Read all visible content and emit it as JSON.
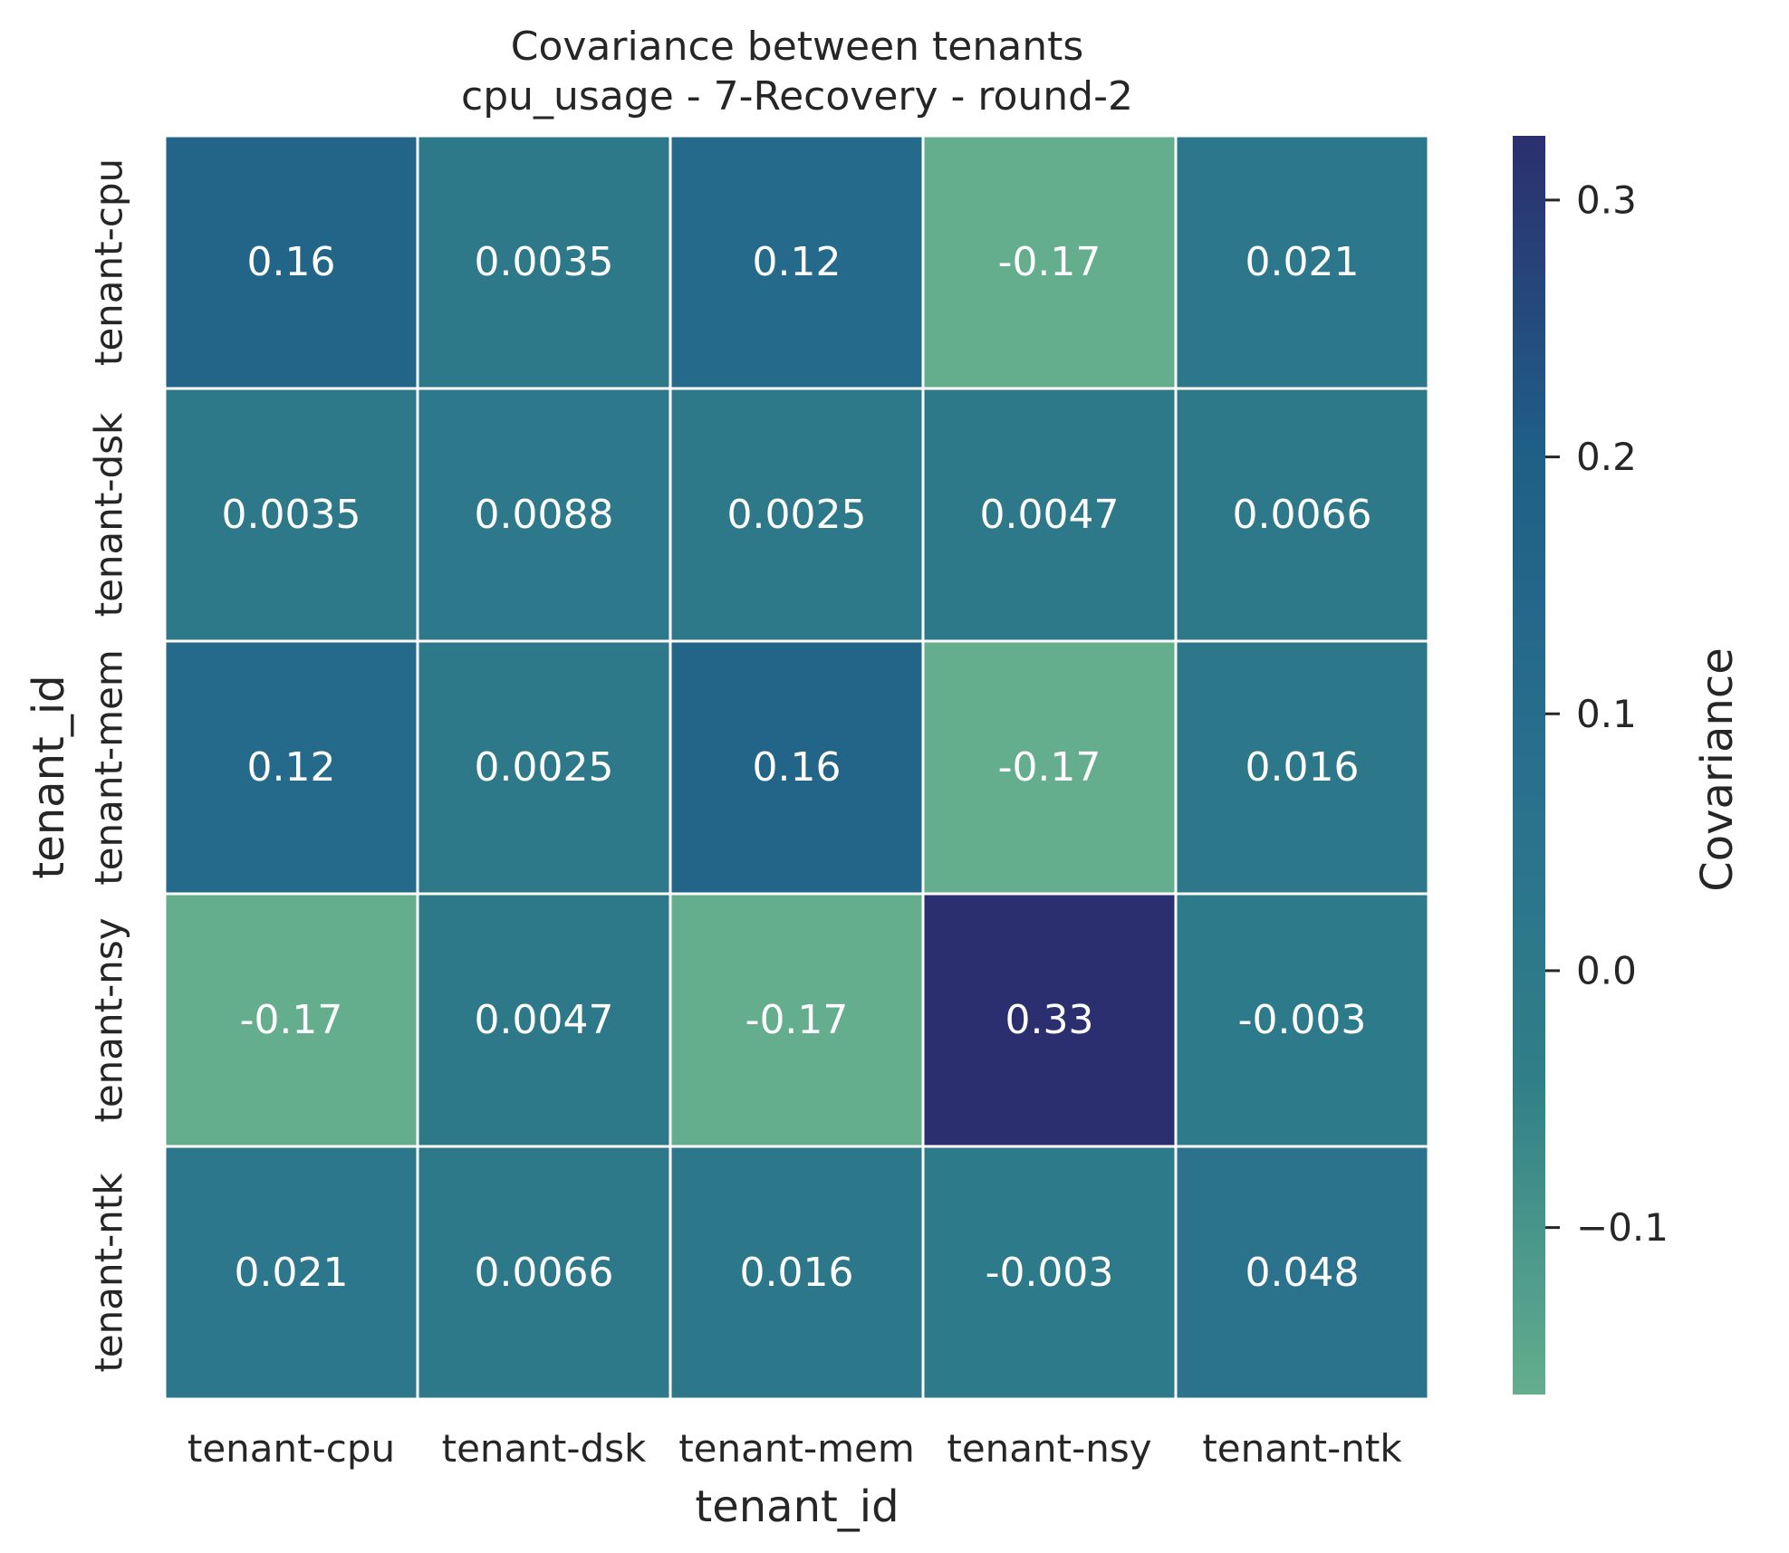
{
  "chart_data": {
    "type": "heatmap",
    "title": "Covariance between tenants",
    "subtitle": "cpu_usage - 7-Recovery - round-2",
    "xlabel": "tenant_id",
    "ylabel": "tenant_id",
    "x_categories": [
      "tenant-cpu",
      "tenant-dsk",
      "tenant-mem",
      "tenant-nsy",
      "tenant-ntk"
    ],
    "y_categories": [
      "tenant-cpu",
      "tenant-dsk",
      "tenant-mem",
      "tenant-nsy",
      "tenant-ntk"
    ],
    "values": [
      [
        0.16,
        0.0035,
        0.12,
        -0.17,
        0.021
      ],
      [
        0.0035,
        0.0088,
        0.0025,
        0.0047,
        0.0066
      ],
      [
        0.12,
        0.0025,
        0.16,
        -0.17,
        0.016
      ],
      [
        -0.17,
        0.0047,
        -0.17,
        0.33,
        -0.003
      ],
      [
        0.021,
        0.0066,
        0.016,
        -0.003,
        0.048
      ]
    ],
    "labels": [
      [
        "0.16",
        "0.0035",
        "0.12",
        "-0.17",
        "0.021"
      ],
      [
        "0.0035",
        "0.0088",
        "0.0025",
        "0.0047",
        "0.0066"
      ],
      [
        "0.12",
        "0.0025",
        "0.16",
        "-0.17",
        "0.016"
      ],
      [
        "-0.17",
        "0.0047",
        "-0.17",
        "0.33",
        "-0.003"
      ],
      [
        "0.021",
        "0.0066",
        "0.016",
        "-0.003",
        "0.048"
      ]
    ],
    "colorbar": {
      "label": "Covariance",
      "vmin": -0.165,
      "vmax": 0.325,
      "ticks": [
        0.3,
        0.2,
        0.1,
        0.0,
        -0.1
      ],
      "tick_labels": [
        "0.3",
        "0.2",
        "0.1",
        "0.0",
        "−0.1"
      ],
      "colors": [
        "#64ad8d",
        "#2f7f88",
        "#2a6f8e",
        "#1f5f86",
        "#2b2f6f"
      ]
    }
  }
}
